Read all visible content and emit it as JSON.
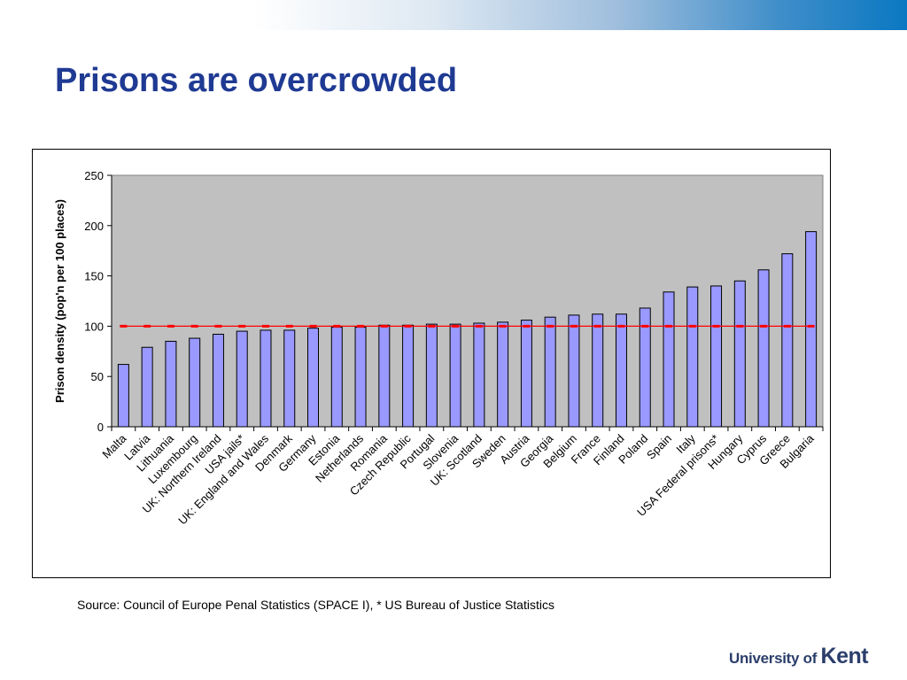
{
  "slide": {
    "title": "Prisons are overcrowded",
    "source": "Source: Council of Europe Penal Statistics (SPACE I), * US Bureau of Justice Statistics",
    "logo_prefix": "University of",
    "logo_name": "Kent"
  },
  "chart_data": {
    "type": "bar",
    "title": "",
    "xlabel": "",
    "ylabel": "Prison density (pop'n per 100 places)",
    "ylim": [
      0,
      250
    ],
    "yticks": [
      0,
      50,
      100,
      150,
      200,
      250
    ],
    "grid": false,
    "categories": [
      "Malta",
      "Latvia",
      "Lithuania",
      "Luxembourg",
      "UK: Northern Ireland",
      "USA jails*",
      "UK: England and Wales",
      "Denmark",
      "Germany",
      "Estonia",
      "Netherlands",
      "Romania",
      "Czech Republic",
      "Portugal",
      "Slovenia",
      "UK: Scotland",
      "Sweden",
      "Austria",
      "Georgia",
      "Belgium",
      "France",
      "Finland",
      "Poland",
      "Spain",
      "Italy",
      "USA Federal prisons*",
      "Hungary",
      "Cyprus",
      "Greece",
      "Bulgaria"
    ],
    "values": [
      62,
      79,
      85,
      88,
      92,
      95,
      96,
      96,
      98,
      99,
      99,
      101,
      101,
      102,
      102,
      103,
      104,
      106,
      109,
      111,
      112,
      112,
      118,
      134,
      139,
      140,
      145,
      156,
      172,
      194
    ],
    "reference_value": 100,
    "colors": {
      "bar_fill": "#9999ff",
      "bar_stroke": "#000000",
      "plot_background": "#c0c0c0",
      "reference_line": "#ff0000"
    }
  }
}
